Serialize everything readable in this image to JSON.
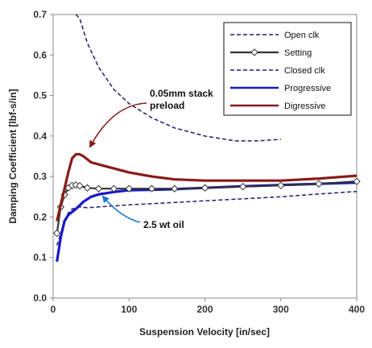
{
  "chart_data": {
    "type": "line",
    "xlabel": "Suspension Velocity [in/sec]",
    "ylabel": "Damping Coefficient [lbf-s/in]",
    "xlim": [
      0,
      400
    ],
    "ylim": [
      0.0,
      0.7
    ],
    "x_ticks": [
      "0",
      "100",
      "200",
      "300",
      "400"
    ],
    "y_ticks": [
      "0.0",
      "0.1",
      "0.2",
      "0.3",
      "0.4",
      "0.5",
      "0.6",
      "0.7"
    ],
    "grid": false,
    "legend_position": "top-right",
    "series": [
      {
        "name": "Open clk",
        "color": "#1f1f6e",
        "style": "dashed",
        "points": [
          [
            30,
            0.72
          ],
          [
            35,
            0.69
          ],
          [
            45,
            0.63
          ],
          [
            60,
            0.57
          ],
          [
            80,
            0.515
          ],
          [
            100,
            0.48
          ],
          [
            130,
            0.445
          ],
          [
            160,
            0.42
          ],
          [
            200,
            0.4
          ],
          [
            240,
            0.388
          ],
          [
            270,
            0.388
          ],
          [
            300,
            0.392
          ]
        ]
      },
      {
        "name": "Setting",
        "color": "#333333",
        "style": "solid-diamond",
        "points": [
          [
            5,
            0.16
          ],
          [
            10,
            0.225
          ],
          [
            15,
            0.255
          ],
          [
            20,
            0.272
          ],
          [
            25,
            0.278
          ],
          [
            30,
            0.279
          ],
          [
            35,
            0.277
          ],
          [
            45,
            0.272
          ],
          [
            60,
            0.27
          ],
          [
            80,
            0.27
          ],
          [
            100,
            0.27
          ],
          [
            130,
            0.27
          ],
          [
            160,
            0.27
          ],
          [
            200,
            0.272
          ],
          [
            250,
            0.275
          ],
          [
            300,
            0.278
          ],
          [
            350,
            0.282
          ],
          [
            400,
            0.288
          ]
        ]
      },
      {
        "name": "Closed clk",
        "color": "#1f1f6e",
        "style": "dashed",
        "points": [
          [
            5,
            0.13
          ],
          [
            10,
            0.16
          ],
          [
            15,
            0.19
          ],
          [
            20,
            0.21
          ],
          [
            25,
            0.22
          ],
          [
            35,
            0.225
          ],
          [
            45,
            0.223
          ],
          [
            60,
            0.225
          ],
          [
            100,
            0.23
          ],
          [
            150,
            0.235
          ],
          [
            200,
            0.24
          ],
          [
            250,
            0.245
          ],
          [
            300,
            0.25
          ],
          [
            350,
            0.257
          ],
          [
            400,
            0.263
          ]
        ]
      },
      {
        "name": "Progressive",
        "color": "#1818c8",
        "style": "solid",
        "points": [
          [
            5,
            0.09
          ],
          [
            10,
            0.15
          ],
          [
            15,
            0.19
          ],
          [
            20,
            0.205
          ],
          [
            30,
            0.22
          ],
          [
            40,
            0.238
          ],
          [
            50,
            0.25
          ],
          [
            60,
            0.256
          ],
          [
            80,
            0.262
          ],
          [
            100,
            0.266
          ],
          [
            150,
            0.268
          ],
          [
            200,
            0.272
          ],
          [
            250,
            0.276
          ],
          [
            300,
            0.279
          ],
          [
            350,
            0.282
          ],
          [
            400,
            0.285
          ]
        ]
      },
      {
        "name": "Digressive",
        "color": "#8b1a1a",
        "style": "solid",
        "points": [
          [
            5,
            0.19
          ],
          [
            10,
            0.23
          ],
          [
            15,
            0.27
          ],
          [
            20,
            0.31
          ],
          [
            25,
            0.345
          ],
          [
            30,
            0.355
          ],
          [
            35,
            0.355
          ],
          [
            40,
            0.35
          ],
          [
            50,
            0.335
          ],
          [
            60,
            0.33
          ],
          [
            80,
            0.32
          ],
          [
            100,
            0.31
          ],
          [
            130,
            0.3
          ],
          [
            160,
            0.293
          ],
          [
            200,
            0.29
          ],
          [
            250,
            0.29
          ],
          [
            300,
            0.29
          ],
          [
            350,
            0.295
          ],
          [
            400,
            0.302
          ]
        ]
      }
    ],
    "annotations": [
      {
        "text_lines": [
          "0.05mm stack",
          "preload"
        ],
        "target": [
          33,
          0.36
        ],
        "color": "#8b1a1a"
      },
      {
        "text_lines": [
          "2.5 wt oil"
        ],
        "target": [
          55,
          0.258
        ],
        "color": "#1f77d4"
      }
    ]
  }
}
